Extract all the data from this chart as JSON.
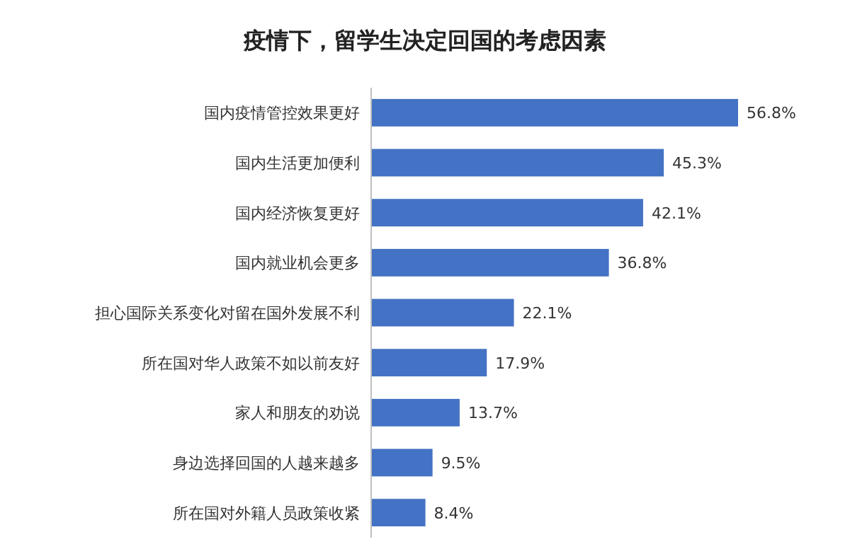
{
  "chart_data": {
    "type": "bar",
    "orientation": "horizontal",
    "title": "疫情下，留学生决定回国的考虑因素",
    "categories": [
      "国内疫情管控效果更好",
      "国内生活更加便利",
      "国内经济恢复更好",
      "国内就业机会更多",
      "担心国际关系变化对留在国外发展不利",
      "所在国对华人政策不如以前友好",
      "家人和朋友的劝说",
      "身边选择回国的人越来越多",
      "所在国对外籍人员政策收紧"
    ],
    "values": [
      56.8,
      45.3,
      42.1,
      36.8,
      22.1,
      17.9,
      13.7,
      9.5,
      8.4
    ],
    "value_labels": [
      "56.8%",
      "45.3%",
      "42.1%",
      "36.8%",
      "22.1%",
      "17.9%",
      "13.7%",
      "9.5%",
      "8.4%"
    ],
    "color": "#4472c4"
  }
}
